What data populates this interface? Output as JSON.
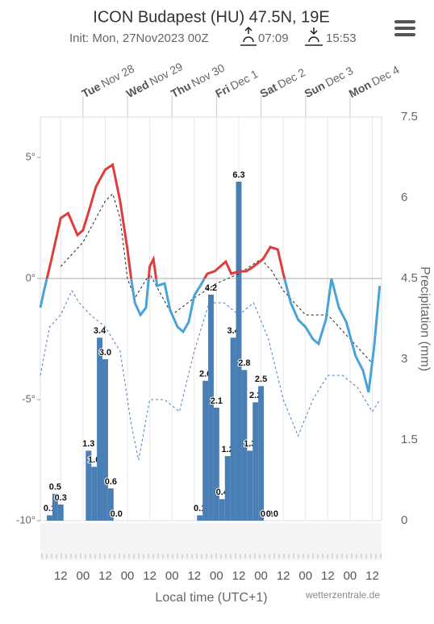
{
  "chart_data": {
    "type": "meteogram",
    "title": "ICON Budapest (HU) 47.5N, 19E",
    "subtitle": "Init: Mon, 27Nov2023 00Z",
    "sunrise": "07:09",
    "sunset": "15:53",
    "days": [
      {
        "name": "Tue",
        "date": "Nov 28",
        "x": 24
      },
      {
        "name": "Wed",
        "date": "Nov 29",
        "x": 48
      },
      {
        "name": "Thu",
        "date": "Nov 30",
        "x": 72
      },
      {
        "name": "Fri",
        "date": "Dec 1",
        "x": 96
      },
      {
        "name": "Sat",
        "date": "Dec 2",
        "x": 120
      },
      {
        "name": "Sun",
        "date": "Dec 3",
        "x": 144
      },
      {
        "name": "Mon",
        "date": "Dec 4",
        "x": 168
      }
    ],
    "x_label": "Local time (UTC+1)",
    "y2_label": "Precipitation (mm)",
    "credit": "wetterzentrale.de",
    "xlim": [
      1,
      185
    ],
    "xticks": [
      12,
      {
        "value": 24,
        "label": "00"
      },
      {
        "value": 36,
        "label": "12"
      },
      {
        "value": 48,
        "label": "00"
      },
      {
        "value": 60,
        "label": "12"
      },
      {
        "value": 72,
        "label": "00"
      },
      {
        "value": 84,
        "label": "12"
      },
      {
        "value": 96,
        "label": "00"
      },
      {
        "value": 108,
        "label": "12"
      },
      {
        "value": 120,
        "label": "00"
      },
      {
        "value": 132,
        "label": "12"
      },
      {
        "value": 144,
        "label": "00"
      },
      {
        "value": 156,
        "label": "12"
      },
      {
        "value": 168,
        "label": "00"
      },
      {
        "value": 180,
        "label": "12"
      }
    ],
    "ylim": [
      -10,
      6.67
    ],
    "yticks": [
      {
        "value": -10,
        "label": "-10°"
      },
      {
        "value": -5,
        "label": "-5°"
      },
      {
        "value": 0,
        "label": "0°"
      },
      {
        "value": 5,
        "label": "5°"
      }
    ],
    "y2lim": [
      0,
      7.5
    ],
    "y2ticks": [
      0,
      1.5,
      3,
      4.5,
      6,
      7.5
    ],
    "grid": true,
    "series": [
      {
        "kind": "temperature",
        "color_warm": "#e03c3c",
        "color": "#4aa3d8",
        "x": [
          1,
          3,
          7,
          12,
          16,
          21,
          24,
          28,
          31,
          36,
          40,
          44,
          48,
          50,
          52,
          55,
          58,
          60,
          62,
          64,
          68,
          71,
          75,
          78,
          81,
          84,
          88,
          91,
          95,
          98,
          101,
          104,
          108,
          112,
          116,
          121,
          125,
          129,
          132,
          136,
          140,
          144,
          148,
          151,
          155,
          158,
          162,
          166,
          171,
          175,
          178,
          181,
          184
        ],
        "values": [
          -1.2,
          -0.5,
          0.8,
          2.5,
          2.7,
          1.8,
          2.0,
          3.0,
          3.8,
          4.5,
          4.7,
          3.2,
          1.2,
          0,
          -1.0,
          -1.5,
          -1.2,
          0.5,
          0.8,
          -0.3,
          -0.2,
          -1.3,
          -2.0,
          -2.2,
          -1.8,
          -0.7,
          -0.2,
          0.2,
          0.3,
          0.5,
          0.7,
          0.2,
          0.3,
          0.3,
          0.5,
          0.8,
          1.3,
          1.2,
          0.2,
          -1.0,
          -1.7,
          -2.0,
          -2.5,
          -2.7,
          -1.7,
          0,
          -1.2,
          -1.8,
          -3.2,
          -3.8,
          -4.7,
          -2.8,
          -0.3
        ]
      },
      {
        "kind": "dashed",
        "color": "#222222",
        "x": [
          12,
          24,
          36,
          40,
          44,
          48,
          52,
          60,
          72,
          84,
          96,
          108,
          120,
          126,
          132,
          144,
          156,
          168,
          180
        ],
        "values": [
          0.5,
          1.5,
          3.2,
          3.5,
          2.5,
          0,
          -0.8,
          0.2,
          -1.5,
          -0.8,
          -0.2,
          0.2,
          0.8,
          0.3,
          -0.5,
          -1.5,
          -1.5,
          -2.5,
          -3.5
        ]
      },
      {
        "kind": "dashed",
        "color": "#4a7fc0",
        "x": [
          1,
          6,
          12,
          18,
          22,
          28,
          36,
          44,
          50,
          54,
          60,
          68,
          76,
          84,
          92,
          100,
          108,
          116,
          124,
          132,
          140,
          148,
          156,
          164,
          172,
          180,
          184
        ],
        "values": [
          -4,
          -2,
          -1.5,
          -0.5,
          -1,
          -1.5,
          -2,
          -3,
          -6,
          -7.5,
          -5,
          -5,
          -5.5,
          -3,
          -1,
          -1,
          -1.5,
          -1,
          -2.5,
          -5,
          -6.5,
          -5,
          -4,
          -4,
          -4.5,
          -5.5,
          -5
        ]
      },
      {
        "kind": "precipitation",
        "axis": "y2",
        "color": "#4a7fb5",
        "x": [
          6,
          9,
          12,
          27,
          30,
          33,
          36,
          39,
          42,
          87,
          90,
          93,
          96,
          99,
          102,
          105,
          108,
          111,
          114,
          117,
          120,
          123,
          126
        ],
        "values": [
          0.1,
          0.5,
          0.3,
          1.3,
          1.0,
          3.4,
          3.0,
          0.6,
          0.0,
          0.1,
          2.6,
          4.2,
          2.1,
          0.4,
          1.2,
          3.4,
          6.3,
          2.8,
          1.3,
          2.2,
          2.5,
          0.0,
          0.0
        ],
        "value_labels": [
          "0.1",
          "0.5",
          "0.3",
          "1.3",
          "1.0",
          "3.4",
          "3.0",
          "0.6",
          "0.0",
          "0.1",
          "2.6",
          "4.2",
          "2.1",
          "0.4",
          "1.2",
          "3.4",
          "6.3",
          "2.8",
          "1.3",
          "2.2",
          "2.5",
          "0.0",
          "0.0"
        ]
      }
    ]
  }
}
